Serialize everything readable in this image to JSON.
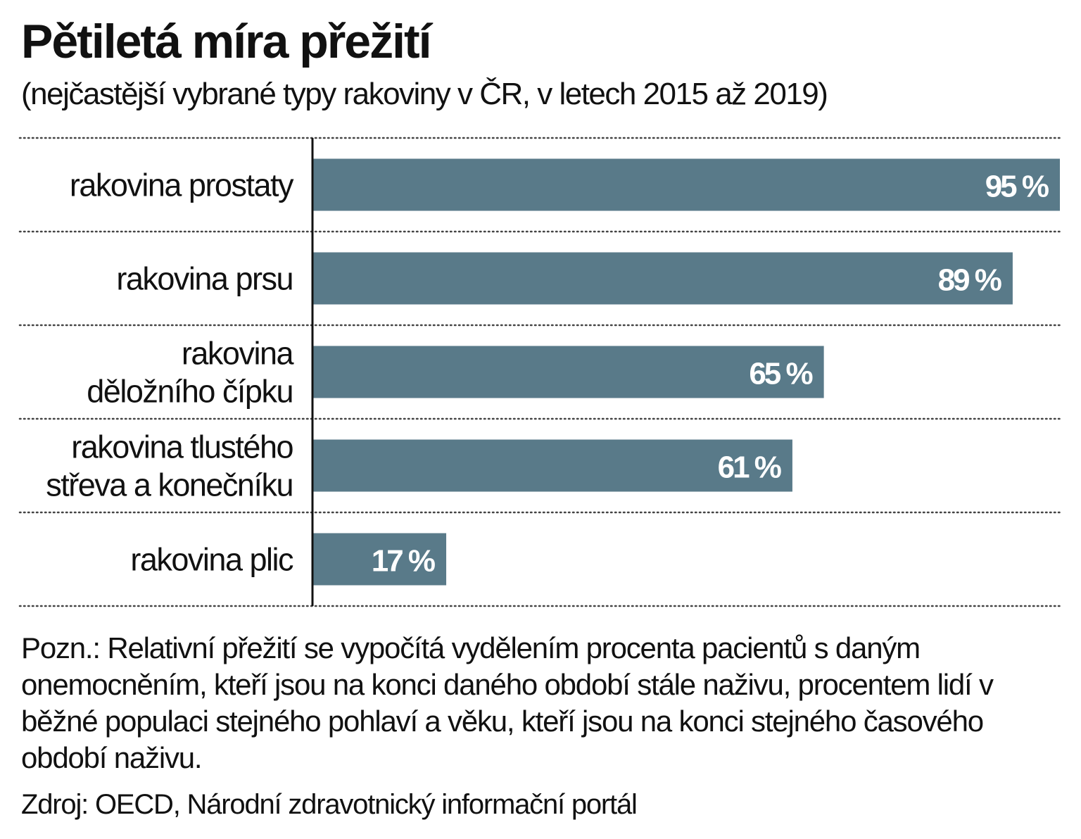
{
  "chart_data": {
    "type": "bar",
    "orientation": "horizontal",
    "title": "Pětiletá míra přežití",
    "subtitle": "(nejčastější vybrané typy rakoviny v ČR, v letech 2015 až 2019)",
    "categories": [
      [
        "rakovina prostaty"
      ],
      [
        "rakovina prsu"
      ],
      [
        "rakovina",
        "děložního čípku"
      ],
      [
        "rakovina tlustého",
        "střeva a konečníku"
      ],
      [
        "rakovina plic"
      ]
    ],
    "values": [
      95,
      89,
      65,
      61,
      17
    ],
    "value_labels": [
      "95 %",
      "89 %",
      "65 %",
      "61 %",
      "17 %"
    ],
    "xlim": [
      0,
      95
    ],
    "unit": "%",
    "bar_color": "#597a89",
    "label_color": "#ffffff",
    "grid": "dotted row separators"
  },
  "note": "Pozn.: Relativní přežití se vypočítá vydělením procenta pacientů s daným onemocněním, kteří jsou na konci daného období stále naživu, procentem lidí v běžné populaci stejného pohlaví a věku, kteří jsou na konci stejného časového období naživu.",
  "source": "Zdroj: OECD, Národní zdravotnický informační portál"
}
